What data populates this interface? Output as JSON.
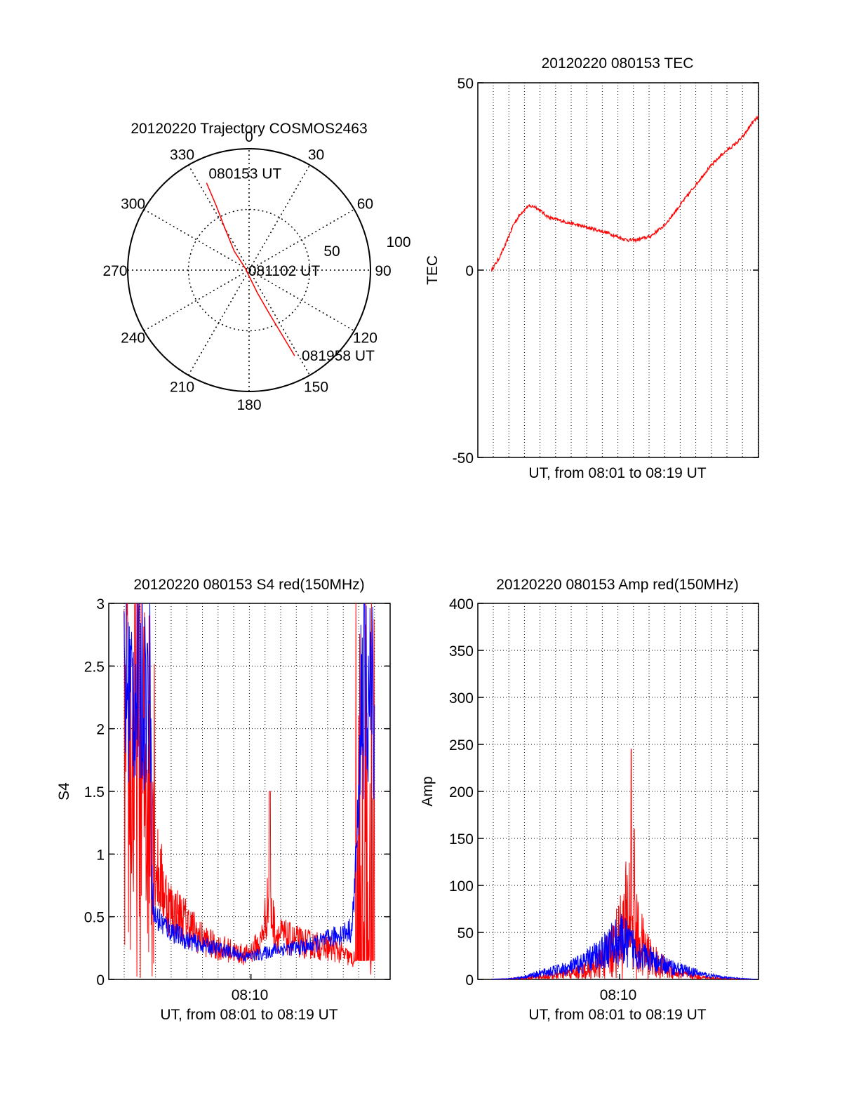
{
  "colors": {
    "red": "#ff0000",
    "blue": "#0000ff",
    "grid": "#000000"
  },
  "chart_data": [
    {
      "id": "polar",
      "type": "polar-trajectory",
      "title": "20120220 Trajectory COSMOS2463",
      "azimuth_labels": [
        "0",
        "30",
        "60",
        "90",
        "120",
        "150",
        "180",
        "210",
        "240",
        "270",
        "300",
        "330"
      ],
      "radial_labels": [
        "50",
        "100"
      ],
      "rmax": 100,
      "trajectory": [
        {
          "az": 334,
          "r": 80
        },
        {
          "az": 333,
          "r": 60
        },
        {
          "az": 330,
          "r": 40
        },
        {
          "az": 322,
          "r": 20
        },
        {
          "az": 300,
          "r": 4
        },
        {
          "az": 160,
          "r": 20
        },
        {
          "az": 155,
          "r": 40
        },
        {
          "az": 153,
          "r": 60
        },
        {
          "az": 152,
          "r": 80
        }
      ],
      "annotations": [
        {
          "text": "080153 UT",
          "az": 334,
          "r": 80
        },
        {
          "text": "081102 UT",
          "az": 0,
          "r": 0
        },
        {
          "text": "081958 UT",
          "az": 152,
          "r": 80
        }
      ]
    },
    {
      "id": "tec",
      "type": "line",
      "title": "20120220 080153 TEC",
      "ylabel": "TEC",
      "xlabel": "UT, from 08:01 to 08:19 UT",
      "xlim": [
        0,
        18.5
      ],
      "ylim": [
        -50,
        50
      ],
      "yticks": [
        "-50",
        "0",
        "50"
      ],
      "series": [
        {
          "color": "red",
          "x": [
            0,
            0.5,
            1.0,
            1.5,
            2.0,
            2.5,
            3.0,
            4.0,
            5.0,
            6.0,
            7.0,
            8.0,
            9.0,
            9.5,
            10.0,
            11.0,
            12.0,
            13.0,
            14.0,
            15.0,
            16.0,
            17.0,
            17.5,
            18.0,
            18.5
          ],
          "y": [
            0,
            3,
            7,
            12,
            15,
            17,
            17,
            14,
            13,
            12,
            11,
            10,
            8.5,
            8,
            8,
            9,
            12,
            17,
            22,
            27,
            31,
            34,
            36,
            39,
            41
          ]
        }
      ]
    },
    {
      "id": "s4",
      "type": "line",
      "title": "20120220 080153 S4 red(150MHz)",
      "ylabel": "S4",
      "xlabel": "UT, from 08:01 to 08:19 UT",
      "xtick_label": "08:10",
      "xlim": [
        0,
        18.5
      ],
      "ylim": [
        0,
        3
      ],
      "yticks": [
        "0",
        "0.5",
        "1",
        "1.5",
        "2",
        "2.5",
        "3"
      ],
      "red_envelope": {
        "x": [
          0.5,
          1.5,
          2.5,
          3.0,
          4.0,
          5.0,
          6.0,
          7.0,
          8.0,
          9.0,
          10.0,
          10.5,
          11.0,
          12.0,
          13.0,
          14.0,
          15.0,
          16.0
        ],
        "y": [
          2.4,
          2.3,
          1.5,
          0.9,
          0.55,
          0.45,
          0.32,
          0.25,
          0.22,
          0.18,
          0.28,
          0.6,
          0.35,
          0.3,
          0.27,
          0.25,
          0.22,
          0.15
        ]
      },
      "blue_envelope": {
        "x": [
          0.5,
          1.5,
          2.5,
          3.0,
          4.0,
          5.0,
          6.0,
          7.0,
          8.0,
          9.0,
          10.0,
          11.0,
          12.0,
          13.0,
          14.0,
          15.0,
          16.0,
          16.5
        ],
        "y": [
          2.3,
          2.2,
          1.4,
          0.5,
          0.4,
          0.32,
          0.28,
          0.25,
          0.22,
          0.18,
          0.2,
          0.24,
          0.25,
          0.26,
          0.3,
          0.35,
          0.4,
          1.5
        ]
      },
      "peak": {
        "x": 10.6,
        "y": 1.5
      }
    },
    {
      "id": "amp",
      "type": "line",
      "title": "20120220 080153 Amp red(150MHz)",
      "ylabel": "Amp",
      "xlabel": "UT, from 08:01 to 08:19 UT",
      "xtick_label": "08:10",
      "xlim": [
        0,
        18.5
      ],
      "ylim": [
        0,
        400
      ],
      "yticks": [
        "0",
        "50",
        "100",
        "150",
        "200",
        "250",
        "300",
        "350",
        "400"
      ],
      "red_envelope": {
        "x": [
          0,
          2,
          3,
          4,
          5,
          6,
          7,
          8,
          8.5,
          9,
          9.5,
          10,
          10.5,
          11,
          11.5,
          12,
          13,
          14,
          15,
          16,
          17,
          18.5
        ],
        "y": [
          0,
          1,
          3,
          5,
          8,
          12,
          18,
          30,
          50,
          70,
          100,
          150,
          90,
          60,
          40,
          30,
          15,
          8,
          4,
          2,
          1,
          0
        ]
      },
      "blue_envelope": {
        "x": [
          0,
          2,
          3,
          4,
          5,
          6,
          7,
          8,
          8.5,
          9,
          9.5,
          10,
          10.5,
          11,
          11.5,
          12,
          13,
          14,
          15,
          16,
          17,
          18.5
        ],
        "y": [
          0,
          1,
          4,
          10,
          15,
          20,
          30,
          45,
          55,
          65,
          70,
          60,
          50,
          40,
          32,
          28,
          20,
          14,
          8,
          4,
          2,
          0
        ]
      },
      "peak": {
        "x": 10.1,
        "y": 245
      },
      "peak2": {
        "x": 10.3,
        "y": 160
      }
    }
  ]
}
